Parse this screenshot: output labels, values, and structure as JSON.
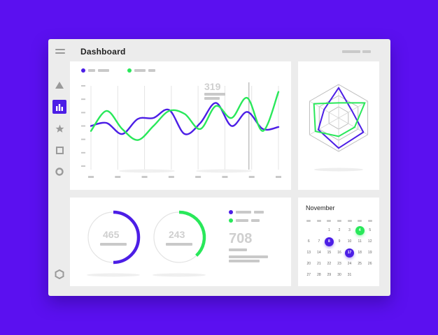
{
  "app": {
    "title": "Dashboard"
  },
  "sidebar": {
    "items": [
      {
        "icon": "triangle-icon",
        "active": false
      },
      {
        "icon": "bar-chart-icon",
        "active": true
      },
      {
        "icon": "star-icon",
        "active": false
      },
      {
        "icon": "square-icon",
        "active": false
      },
      {
        "icon": "circle-icon",
        "active": false
      }
    ],
    "bottom_icon": "hexagon-icon"
  },
  "colors": {
    "accent": "#4c1ee6",
    "green": "#29e85a",
    "background": "#5b10f0",
    "window": "#ececec"
  },
  "line_chart": {
    "highlight_value": "319",
    "series": [
      {
        "color": "#4c1ee6",
        "values": [
          4,
          4.3,
          3.2,
          4.7,
          4.8,
          5.6,
          3.2,
          4.3,
          6.3,
          4.0,
          5.4,
          3.7,
          3.9
        ]
      },
      {
        "color": "#29e85a",
        "values": [
          3.5,
          5.5,
          3.7,
          2.6,
          4.0,
          5.5,
          5.2,
          3.7,
          6.0,
          4.8,
          6.8,
          3.5,
          7.4
        ]
      }
    ],
    "y_ticks": 7,
    "x_ticks": 8,
    "highlight_index": 6
  },
  "radar": {
    "levels": 3,
    "series": [
      {
        "color": "#4c1ee6",
        "values": [
          0.9,
          0.45,
          0.85,
          0.9,
          0.7,
          0.5
        ]
      },
      {
        "color": "#29e85a",
        "values": [
          0.45,
          0.9,
          0.55,
          0.55,
          0.8,
          0.85
        ]
      }
    ]
  },
  "donuts": [
    {
      "value": "465",
      "color": "#4c1ee6",
      "progress": 0.5
    },
    {
      "value": "243",
      "color": "#29e85a",
      "progress": 0.38
    }
  ],
  "stats": {
    "value": "708"
  },
  "calendar": {
    "month": "November",
    "days": [
      "",
      "",
      "1",
      "2",
      "3",
      "4",
      "5",
      "6",
      "7",
      "8",
      "9",
      "10",
      "11",
      "12",
      "13",
      "14",
      "15",
      "16",
      "17",
      "18",
      "19",
      "20",
      "21",
      "22",
      "23",
      "24",
      "25",
      "26",
      "27",
      "28",
      "29",
      "30",
      "31",
      "",
      ""
    ],
    "marked": {
      "4": "#29e85a",
      "8": "#4c1ee6",
      "17": "#4c1ee6"
    }
  }
}
